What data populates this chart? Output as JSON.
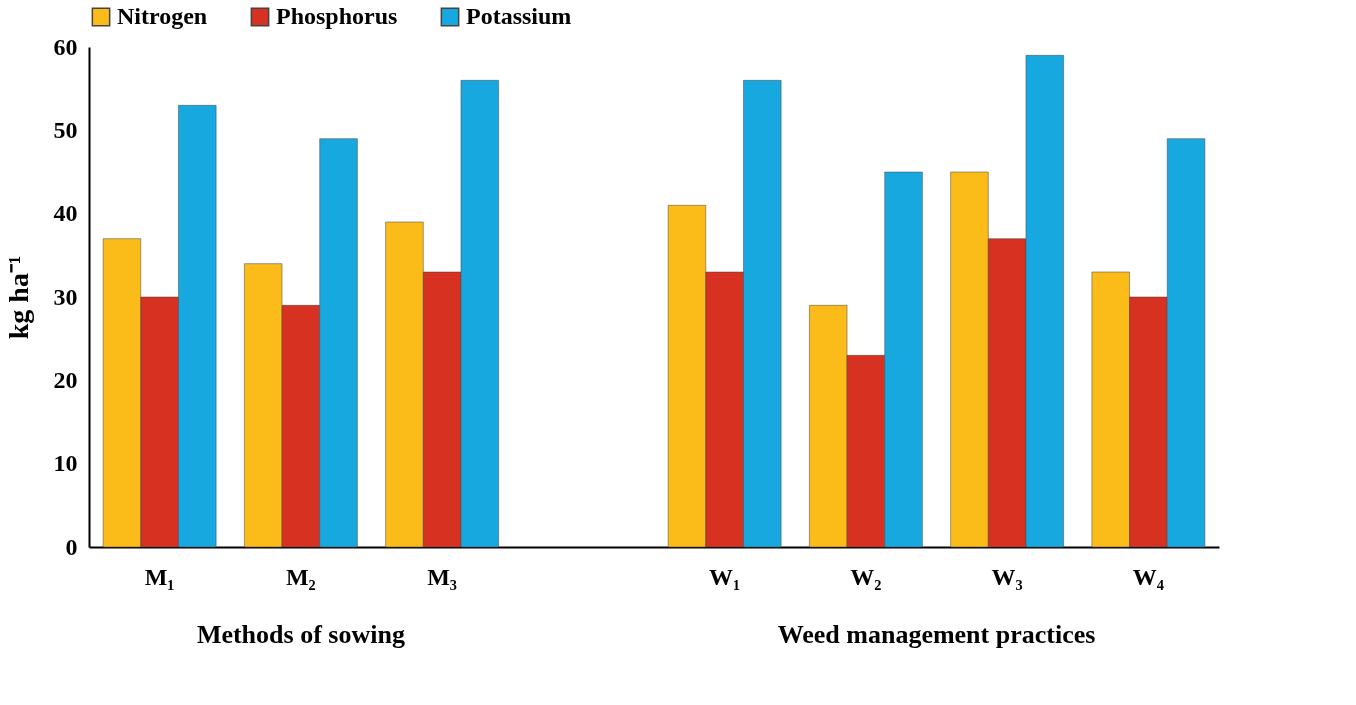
{
  "chart_data": {
    "type": "bar",
    "ylabel": "kg ha⁻¹",
    "categories": [
      "M₁",
      "M₂",
      "M₃",
      null,
      "W₁",
      "W₂",
      "W₃",
      "W₄"
    ],
    "series": [
      {
        "name": "Nitrogen",
        "color": "#fbbc1a",
        "values": [
          37,
          34,
          39,
          null,
          41,
          29,
          45,
          33
        ]
      },
      {
        "name": "Phosphorus",
        "color": "#d63121",
        "values": [
          30,
          29,
          33,
          null,
          33,
          23,
          37,
          30
        ]
      },
      {
        "name": "Potassium",
        "color": "#18a8e0",
        "values": [
          53,
          49,
          56,
          null,
          56,
          45,
          59,
          49
        ]
      }
    ],
    "ylim": [
      0,
      60
    ],
    "yticks": [
      0,
      10,
      20,
      30,
      40,
      50,
      60
    ],
    "grid": false,
    "legend": "top",
    "annotations": [
      "Methods of sowing",
      "Weed management practices"
    ]
  }
}
